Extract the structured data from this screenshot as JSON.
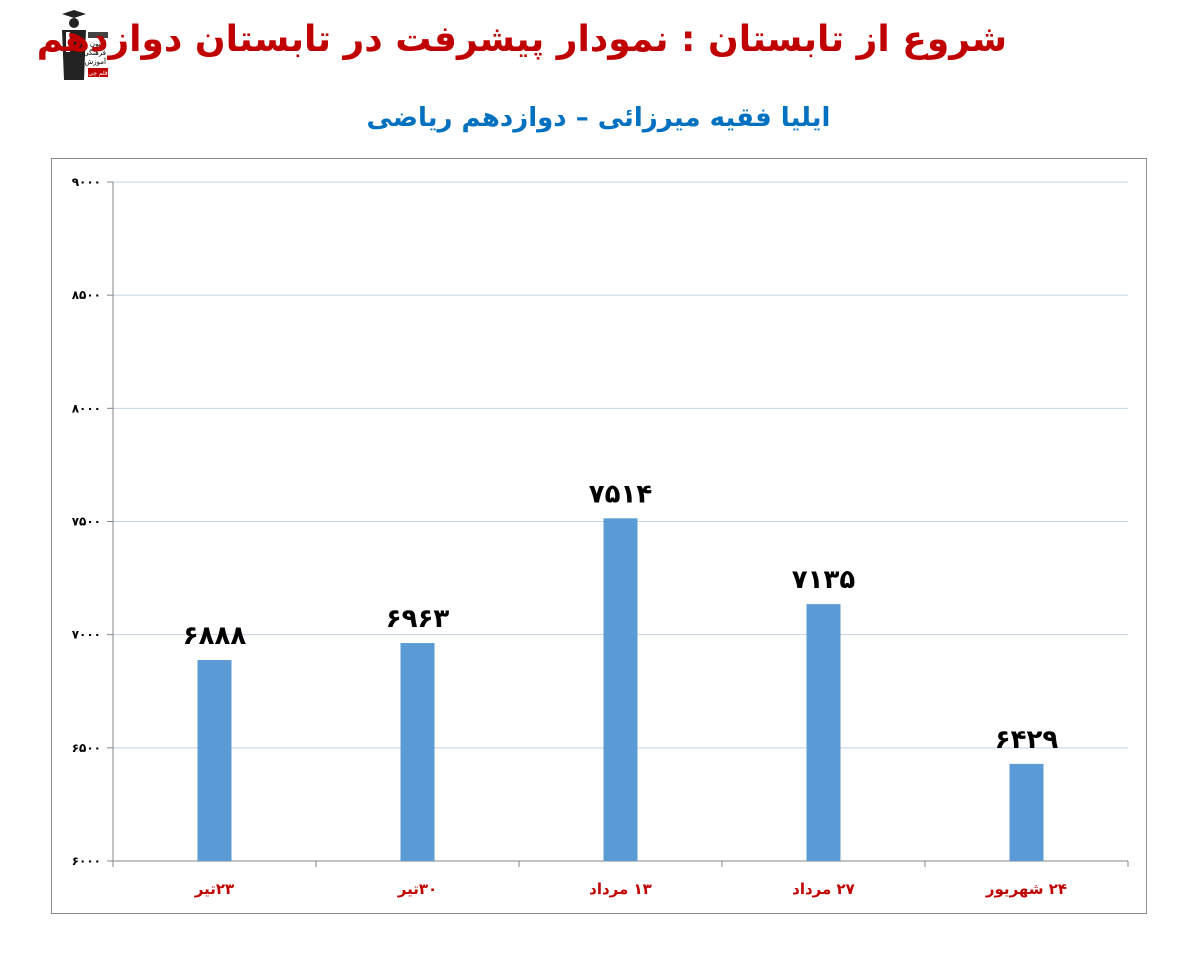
{
  "header": {
    "title": "شروع از تابستان : نمودار پیشرفت در تابستان دوازدهم",
    "subtitle": "ایلیا فقیه میرزائی – دوازدهم ریاضی"
  },
  "logo": {
    "icon": "graduate-logo-icon",
    "lines": [
      "کانون",
      "فرهنگی",
      "آموزش",
      "قلم چی"
    ]
  },
  "colors": {
    "title": "#c00000",
    "subtitle": "#0070c0",
    "bar": "#5b9bd5",
    "grid": "#c5d3e5",
    "category_label": "#c00000"
  },
  "chart_data": {
    "type": "bar",
    "categories": [
      "۲۳تیر",
      "۳۰تیر",
      "۱۳ مرداد",
      "۲۷ مرداد",
      "۲۴ شهریور"
    ],
    "values": [
      6888,
      6963,
      7514,
      7135,
      6429
    ],
    "value_labels": [
      "۶۸۸۸",
      "۶۹۶۳",
      "۷۵۱۴",
      "۷۱۳۵",
      "۶۴۲۹"
    ],
    "yticks": [
      6000,
      6500,
      7000,
      7500,
      8000,
      8500,
      9000
    ],
    "ytick_labels": [
      "۶۰۰۰",
      "۶۵۰۰",
      "۷۰۰۰",
      "۷۵۰۰",
      "۸۰۰۰",
      "۸۵۰۰",
      "۹۰۰۰"
    ],
    "ylim": [
      6000,
      9000
    ],
    "grid": true,
    "legend": "none"
  }
}
